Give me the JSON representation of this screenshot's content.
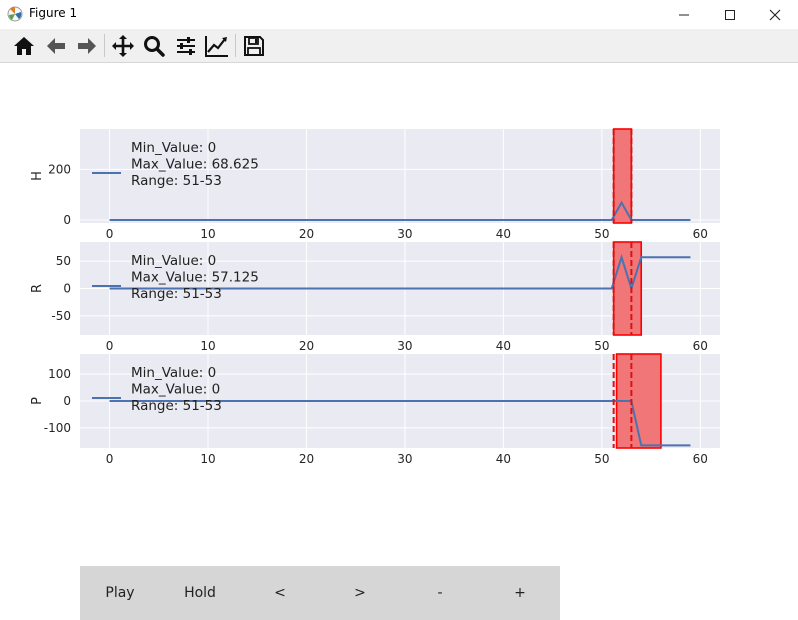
{
  "window": {
    "title": "Figure 1",
    "icon": "matplotlib-icon",
    "controls": [
      "minimize-icon",
      "maximize-icon",
      "close-icon"
    ]
  },
  "toolbar": {
    "items": [
      {
        "name": "home-icon",
        "tooltip": "Reset original view"
      },
      {
        "name": "back-arrow-icon",
        "tooltip": "Back to previous view"
      },
      {
        "name": "forward-arrow-icon",
        "tooltip": "Forward to next view"
      },
      {
        "name": "pan-icon",
        "tooltip": "Pan axes"
      },
      {
        "name": "zoom-icon",
        "tooltip": "Zoom to rectangle"
      },
      {
        "name": "configure-subplots-icon",
        "tooltip": "Configure subplots"
      },
      {
        "name": "edit-axis-icon",
        "tooltip": "Edit axis"
      },
      {
        "name": "save-icon",
        "tooltip": "Save the figure"
      }
    ]
  },
  "colors": {
    "axes_bg": "#eaeaf2",
    "grid": "#ffffff",
    "series": "#4c72b0",
    "highlight_fill": "#f07070",
    "highlight_edge": "#ff0000",
    "marker_line": "#dd1111",
    "tick_text": "#262626",
    "button_bar": "#d6d6d6"
  },
  "chart_data": [
    {
      "type": "line",
      "ylabel": "H",
      "xlim": [
        -3,
        62
      ],
      "ylim": [
        -12,
        360
      ],
      "xticks": [
        0,
        10,
        20,
        30,
        40,
        50,
        60
      ],
      "yticks": [
        0,
        200
      ],
      "grid": true,
      "legend_placement": "upper-left",
      "annotations": [
        "Min_Value: 0",
        "Max_Value: 68.625",
        "Range: 51-53"
      ],
      "series": [
        {
          "x": [
            0,
            51,
            52,
            53,
            59
          ],
          "y": [
            0,
            0,
            68.625,
            0,
            0
          ]
        }
      ],
      "highlight_span": [
        51.2,
        53
      ],
      "marker_lines": [
        51.2,
        53
      ]
    },
    {
      "type": "line",
      "ylabel": "R",
      "xlim": [
        -3,
        62
      ],
      "ylim": [
        -85,
        85
      ],
      "xticks": [
        0,
        10,
        20,
        30,
        40,
        50,
        60
      ],
      "yticks": [
        -50,
        0,
        50
      ],
      "grid": true,
      "legend_placement": "upper-left",
      "annotations": [
        "Min_Value: 0",
        "Max_Value: 57.125",
        "Range: 51-53"
      ],
      "series": [
        {
          "x": [
            0,
            51,
            52,
            53,
            54,
            59
          ],
          "y": [
            0,
            0,
            57.125,
            0,
            57.125,
            57.125
          ]
        }
      ],
      "highlight_span": [
        51.2,
        54
      ],
      "marker_lines": [
        51.2,
        53
      ]
    },
    {
      "type": "line",
      "ylabel": "P",
      "xlim": [
        -3,
        62
      ],
      "ylim": [
        -175,
        175
      ],
      "xticks": [
        0,
        10,
        20,
        30,
        40,
        50,
        60
      ],
      "yticks": [
        -100,
        0,
        100
      ],
      "grid": true,
      "legend_placement": "upper-left",
      "annotations": [
        "Min_Value: 0",
        "Max_Value: 0",
        "Range: 51-53"
      ],
      "series": [
        {
          "x": [
            0,
            52,
            53,
            54,
            56,
            59
          ],
          "y": [
            0,
            0,
            0,
            -165,
            -165,
            -165
          ]
        }
      ],
      "highlight_span": [
        51.5,
        56
      ],
      "marker_lines": [
        51.2,
        53
      ]
    }
  ],
  "buttons": [
    "Play",
    "Hold",
    "<",
    ">",
    "-",
    "+"
  ]
}
